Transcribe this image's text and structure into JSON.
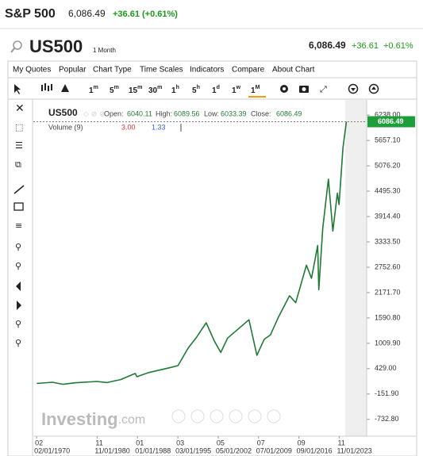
{
  "header": {
    "title": "S&P 500",
    "price": "6,086.49",
    "change": "+36.61 (+0.61%)"
  },
  "quote": {
    "symbol": "US500",
    "period": "1 Month",
    "price": "6,086.49",
    "change": "+36.61",
    "change_pct": "+0.61%"
  },
  "menu": [
    "My Quotes",
    "Popular",
    "Chart Type",
    "Time Scales",
    "Indicators",
    "Compare",
    "About Chart"
  ],
  "timeframes": [
    {
      "num": "1",
      "unit": "m"
    },
    {
      "num": "5",
      "unit": "m"
    },
    {
      "num": "15",
      "unit": "m"
    },
    {
      "num": "30",
      "unit": "m"
    },
    {
      "num": "1",
      "unit": "h"
    },
    {
      "num": "5",
      "unit": "h"
    },
    {
      "num": "1",
      "unit": "d"
    },
    {
      "num": "1",
      "unit": "w"
    },
    {
      "num": "1",
      "unit": "M"
    }
  ],
  "watermark": {
    "brand": "Investing",
    "domain": ".com"
  },
  "chart_data": {
    "type": "line",
    "symbol": "US500",
    "ohlc": [
      {
        "label": "Open:",
        "value": 6040.11
      },
      {
        "label": "High:",
        "value": 6089.56
      },
      {
        "label": "Low:",
        "value": 6033.39
      },
      {
        "label": "Close:",
        "value": 6086.49
      }
    ],
    "volume_label": "Volume (9)",
    "volume_values": [
      {
        "value": 3,
        "label": "3.00"
      },
      1.33
    ],
    "last_price": 6086.49,
    "color": "#1f7a35",
    "x": [
      1970.1,
      1972.9,
      1974.8,
      1976.9,
      1980.8,
      1982.6,
      1985.0,
      1987.6,
      1987.9,
      1990.0,
      1994.0,
      1995.2,
      1997.0,
      1998.5,
      2000.2,
      2001.7,
      2002.8,
      2004.0,
      2007.8,
      2009.2,
      2010.5,
      2011.6,
      2013.0,
      2015.0,
      2016.1,
      2018.0,
      2018.9,
      2020.0,
      2020.2,
      2020.9,
      2021.9,
      2022.7,
      2023.5,
      2023.8,
      2024.5,
      2025.1
    ],
    "values": [
      90,
      118,
      70,
      105,
      135,
      110,
      180,
      320,
      245,
      340,
      460,
      500,
      900,
      1150,
      1480,
      1050,
      800,
      1130,
      1550,
      735,
      1100,
      1200,
      1600,
      2100,
      1940,
      2800,
      2500,
      3250,
      2240,
      3650,
      4770,
      3580,
      4450,
      4190,
      5500,
      6086.49
    ],
    "xlim": [
      1969.5,
      2028.7
    ],
    "ylim": [
      -1118,
      6586
    ],
    "yticks": [
      {
        "value": 6238,
        "label": "6238.00"
      },
      {
        "value": 5657.1,
        "label": "5657.10"
      },
      {
        "value": 5076.2,
        "label": "5076.20"
      },
      {
        "value": 4495.3,
        "label": "4495.30"
      },
      {
        "value": 3914.4,
        "label": "3914.40"
      },
      {
        "value": 3333.5,
        "label": "3333.50"
      },
      {
        "value": 2752.6,
        "label": "2752.60"
      },
      {
        "value": 2171.7,
        "label": "2171.70"
      },
      {
        "value": 1590.8,
        "label": "1590.80"
      },
      {
        "value": 1009.9,
        "label": "1009.90"
      },
      {
        "value": 429,
        "label": "429.00"
      },
      {
        "value": -151.9,
        "label": "-151.90"
      },
      {
        "value": -732.8,
        "label": "-732.80"
      }
    ],
    "xticks": [
      {
        "value": 1970.08,
        "label": "02/01/1970"
      },
      {
        "value": 1980.83,
        "label": "11/01/1980"
      },
      {
        "value": 1988.0,
        "label": "01/01/1988"
      },
      {
        "value": 1995.17,
        "label": "03/01/1995"
      },
      {
        "value": 2002.33,
        "label": "05/01/2002"
      },
      {
        "value": 2009.5,
        "label": "07/01/2009"
      },
      {
        "value": 2016.67,
        "label": "09/01/2016"
      },
      {
        "value": 2023.83,
        "label": "11/01/2023"
      }
    ],
    "xtick_months": [
      "02",
      "11",
      "01",
      "03",
      "05",
      "07",
      "09",
      "11"
    ]
  }
}
